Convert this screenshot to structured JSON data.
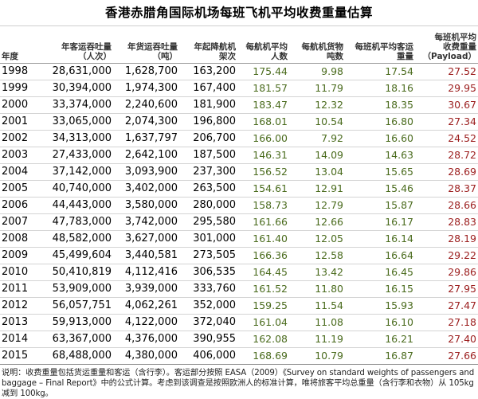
{
  "chart_data": {
    "type": "table",
    "title": "香港赤腊角国际机场每班飞机平均收费重量估算",
    "columns": [
      "年度",
      "年客运吞吐量（人次）",
      "年货运吞吐量（吨）",
      "年起降航机架次",
      "每航机平均人数",
      "每航机货物吨数",
      "每班机平均客运重量",
      "每班机平均收费重量（Payload）"
    ],
    "header_lines": {
      "year": "年度",
      "pax": [
        "年客运吞吐量",
        "（人次）"
      ],
      "cargo": [
        "年货运吞吐量",
        "（吨）"
      ],
      "flights": [
        "年起降航机",
        "架次"
      ],
      "avg_pax": [
        "每航机平均",
        "人数"
      ],
      "cargo_t": [
        "每航机货物",
        "吨数"
      ],
      "pax_wt": [
        "每班机平均客运",
        "重量"
      ],
      "payload": [
        "每班机平均",
        "收费重量",
        "（Payload）"
      ]
    },
    "rows": [
      [
        "1998",
        "28,631,000",
        "1,628,700",
        "163,200",
        "175.44",
        "9.98",
        "17.54",
        "27.52"
      ],
      [
        "1999",
        "30,394,000",
        "1,974,300",
        "167,400",
        "181.57",
        "11.79",
        "18.16",
        "29.95"
      ],
      [
        "2000",
        "33,374,000",
        "2,240,600",
        "181,900",
        "183.47",
        "12.32",
        "18.35",
        "30.67"
      ],
      [
        "2001",
        "33,065,000",
        "2,074,300",
        "196,800",
        "168.01",
        "10.54",
        "16.80",
        "27.34"
      ],
      [
        "2002",
        "34,313,000",
        "1,637,797",
        "206,700",
        "166.00",
        "7.92",
        "16.60",
        "24.52"
      ],
      [
        "2003",
        "27,433,000",
        "2,642,100",
        "187,500",
        "146.31",
        "14.09",
        "14.63",
        "28.72"
      ],
      [
        "2004",
        "37,142,000",
        "3,093,900",
        "237,300",
        "156.52",
        "13.04",
        "15.65",
        "28.69"
      ],
      [
        "2005",
        "40,740,000",
        "3,402,000",
        "263,500",
        "154.61",
        "12.91",
        "15.46",
        "28.37"
      ],
      [
        "2006",
        "44,443,000",
        "3,580,000",
        "280,000",
        "158.73",
        "12.79",
        "15.87",
        "28.66"
      ],
      [
        "2007",
        "47,783,000",
        "3,742,000",
        "295,580",
        "161.66",
        "12.66",
        "16.17",
        "28.83"
      ],
      [
        "2008",
        "48,582,000",
        "3,627,000",
        "301,000",
        "161.40",
        "12.05",
        "16.14",
        "28.19"
      ],
      [
        "2009",
        "45,499,604",
        "3,440,581",
        "273,505",
        "166.36",
        "12.58",
        "16.64",
        "29.22"
      ],
      [
        "2010",
        "50,410,819",
        "4,112,416",
        "306,535",
        "164.45",
        "13.42",
        "16.45",
        "29.86"
      ],
      [
        "2011",
        "53,909,000",
        "3,939,000",
        "333,760",
        "161.52",
        "11.80",
        "16.15",
        "27.95"
      ],
      [
        "2012",
        "56,057,751",
        "4,062,261",
        "352,000",
        "159.25",
        "11.54",
        "15.93",
        "27.47"
      ],
      [
        "2013",
        "59,913,000",
        "4,122,000",
        "372,040",
        "161.04",
        "11.08",
        "16.10",
        "27.18"
      ],
      [
        "2014",
        "63,367,000",
        "4,376,000",
        "390,955",
        "162.08",
        "11.19",
        "16.21",
        "27.40"
      ],
      [
        "2015",
        "68,488,000",
        "4,380,000",
        "406,000",
        "168.69",
        "10.79",
        "16.87",
        "27.66"
      ]
    ]
  },
  "note": "说明：收费重量包括货运重量和客运（含行李）。客运部分按照 EASA（2009）《Survey on standard weights of passengers and baggage – Final Report》中的公式计算。考虑到该调查是按照欧洲人的标准计算，唯将旅客平均总重量（含行李和衣物）从 105kg 减到 100kg。",
  "colors": {
    "green": "#4a6b1d",
    "red": "#9b1c1c"
  }
}
